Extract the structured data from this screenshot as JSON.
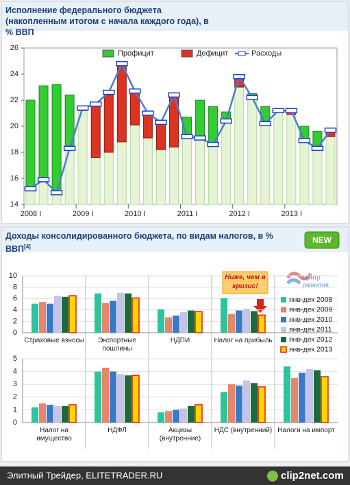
{
  "logo": {
    "line1": "Центр",
    "line2": "развития"
  },
  "badge": "NEW",
  "footer": "Элитный Трейдер, ELITETRADER.RU",
  "watermark": "clip2net.com",
  "chart_data": [
    {
      "type": "combo",
      "title": "Исполнение федерального бюджета (накопленным итогом с начала каждого года), в % ВВП",
      "categories": [
        "2008 I",
        null,
        null,
        null,
        "2009 I",
        null,
        null,
        null,
        "2010 I",
        null,
        null,
        null,
        "2011 I",
        null,
        null,
        null,
        "2012 I",
        null,
        null,
        null,
        "2013 I",
        null,
        null,
        null
      ],
      "base_color": "#e4f4d4",
      "series": [
        {
          "name": "Профицит",
          "color": "#33cc33",
          "values": [
            6.8,
            7.2,
            8.3,
            4.1,
            null,
            null,
            null,
            null,
            null,
            null,
            null,
            null,
            1.5,
            2.9,
            2.9,
            0.7,
            null,
            0.3,
            1.3,
            0.1,
            null,
            1.1,
            1.3,
            null
          ]
        },
        {
          "name": "Дефицит",
          "color": "#dd3322",
          "values": [
            null,
            null,
            null,
            null,
            0.2,
            4.1,
            4.6,
            6.0,
            2.6,
            1.9,
            2.1,
            4.0,
            null,
            null,
            null,
            null,
            0.8,
            null,
            null,
            null,
            0.3,
            null,
            null,
            0.5
          ]
        },
        {
          "name": "Расходы",
          "color": "#4a7cd4",
          "values": [
            15.2,
            15.9,
            14.9,
            18.3,
            21.4,
            21.7,
            22.6,
            24.8,
            22.7,
            21.0,
            20.3,
            22.4,
            19.2,
            19.1,
            18.6,
            20.4,
            23.8,
            22.2,
            20.2,
            21.2,
            21.2,
            18.9,
            18.3,
            19.7
          ]
        }
      ],
      "ylim": [
        14,
        26
      ],
      "yticks": [
        14,
        16,
        18,
        20,
        22,
        24,
        26
      ],
      "grid": false
    },
    {
      "type": "bar",
      "title": "Доходы консолидированного бюджета, по видам налогов, в % ВВП",
      "title_note": "[4]",
      "annotation": "Ниже, чем в кризис!",
      "categories": [
        "Страховые взносы",
        "Экспортные пошлины",
        "НДПИ",
        "Налог на прибыль"
      ],
      "series": [
        {
          "name": "янв-дек 2008",
          "color": "#2bc49c",
          "values": [
            5.1,
            6.9,
            4.1,
            6.1
          ]
        },
        {
          "name": "янв-дек 2009",
          "color": "#e8866a",
          "values": [
            5.4,
            5.2,
            2.7,
            3.3
          ]
        },
        {
          "name": "янв-дек 2010",
          "color": "#3a78c8",
          "values": [
            5.1,
            5.6,
            3.0,
            3.9
          ]
        },
        {
          "name": "янв-дек 2011",
          "color": "#c6c3e8",
          "values": [
            6.5,
            7.0,
            3.6,
            4.2
          ]
        },
        {
          "name": "янв-дек 2012",
          "color": "#1a6b3a",
          "values": [
            6.3,
            6.9,
            3.9,
            3.8
          ]
        },
        {
          "name": "янв-дек 2013",
          "color": "#ffd400",
          "border": "#e02010",
          "values": [
            6.5,
            6.1,
            3.7,
            3.1
          ]
        }
      ],
      "ylim": [
        0,
        10
      ],
      "yticks": [
        0,
        2,
        4,
        6,
        8,
        10
      ],
      "grid": true
    },
    {
      "type": "bar",
      "categories": [
        "Налог на имущество",
        "НДФЛ",
        "Акцизы (внутренние)",
        "НДС (внутренний)",
        "Налоги на импорт"
      ],
      "series": [
        {
          "color": "#2bc49c",
          "values": [
            1.2,
            4.0,
            0.8,
            2.4,
            4.4
          ]
        },
        {
          "color": "#e8866a",
          "values": [
            1.5,
            4.3,
            0.9,
            3.0,
            3.5
          ]
        },
        {
          "color": "#3a78c8",
          "values": [
            1.4,
            4.0,
            1.0,
            2.9,
            3.9
          ]
        },
        {
          "color": "#c6c3e8",
          "values": [
            1.3,
            3.8,
            1.1,
            3.3,
            4.2
          ]
        },
        {
          "color": "#1a6b3a",
          "values": [
            1.3,
            3.7,
            1.3,
            3.1,
            4.1
          ]
        },
        {
          "color": "#ffd400",
          "border": "#e02010",
          "values": [
            1.4,
            3.7,
            1.4,
            2.8,
            3.6
          ]
        }
      ],
      "ylim": [
        0,
        5
      ],
      "yticks": [
        0,
        1,
        2,
        3,
        4,
        5
      ],
      "grid": true
    }
  ]
}
